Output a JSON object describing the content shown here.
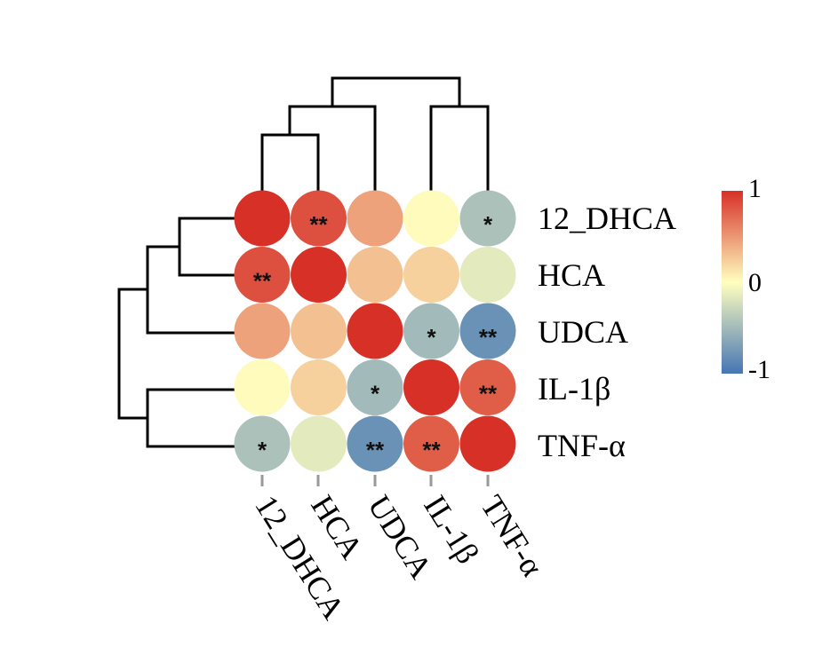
{
  "chart_data": {
    "type": "heatmap",
    "rows": [
      "12_DHCA",
      "HCA",
      "UDCA",
      "IL-1β",
      "TNF-α"
    ],
    "columns": [
      "12_DHCA",
      "HCA",
      "UDCA",
      "IL-1β",
      "TNF-α"
    ],
    "values": [
      [
        1.0,
        0.85,
        0.45,
        0.02,
        -0.45
      ],
      [
        0.85,
        1.0,
        0.3,
        0.22,
        -0.15
      ],
      [
        0.45,
        0.3,
        1.0,
        -0.5,
        -0.8
      ],
      [
        0.02,
        0.22,
        -0.5,
        1.0,
        0.78
      ],
      [
        -0.45,
        -0.15,
        -0.8,
        0.78,
        1.0
      ]
    ],
    "significance": [
      [
        "",
        "**",
        "",
        "",
        "*"
      ],
      [
        "**",
        "",
        "",
        "",
        ""
      ],
      [
        "",
        "",
        "",
        "*",
        "**"
      ],
      [
        "",
        "",
        "*",
        "",
        "**"
      ],
      [
        "*",
        "",
        "**",
        "**",
        ""
      ]
    ],
    "colorbar": {
      "max_label": "1",
      "mid_label": "0",
      "min_label": "-1",
      "min": -1,
      "max": 1
    },
    "colors": {
      "high": "#d73027",
      "mid": "#ffffbf",
      "low": "#4575b4"
    },
    "dendrogram": "hierarchical clustering shown on top and left"
  }
}
